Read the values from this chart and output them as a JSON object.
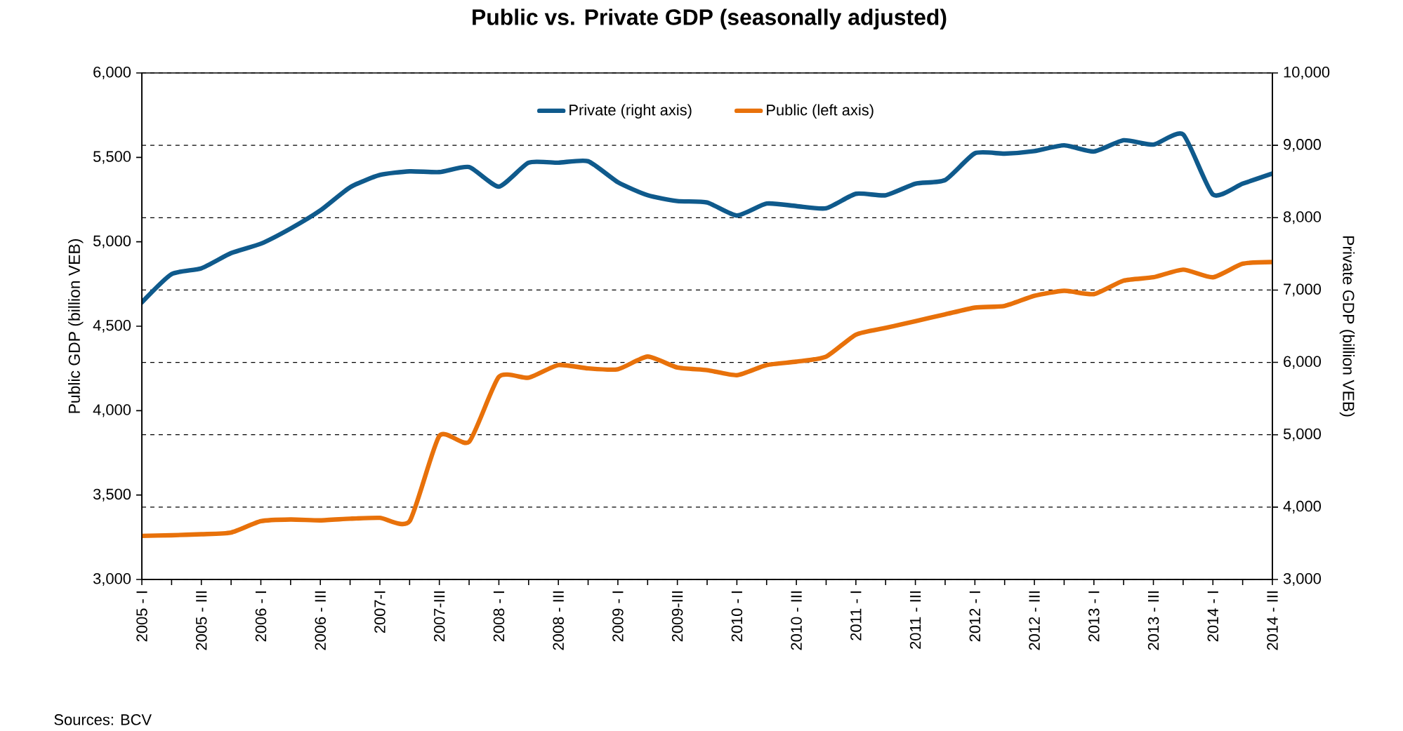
{
  "chart_data": {
    "type": "line",
    "title": "Public vs. Private GDP (seasonally adjusted)",
    "ylabel": "Public GDP (billion VEB)",
    "y2label": "Private GDP (billion VEB)",
    "categories": [
      "2005 - I",
      null,
      "2005 - III",
      null,
      "2006 - I",
      null,
      "2006 - III",
      null,
      "2007-I",
      null,
      "2007-III",
      null,
      "2008 - I",
      null,
      "2008 - III",
      null,
      "2009 - I",
      null,
      "2009-III",
      null,
      "2010 - I",
      null,
      "2010 - III",
      null,
      "2011 - I",
      null,
      "2011 - III",
      null,
      "2012 - I",
      null,
      "2012 - III",
      null,
      "2013 - I",
      null,
      "2013 - III",
      null,
      "2014 - I",
      null,
      "2014 - III"
    ],
    "series": [
      {
        "name": "Private (right axis)",
        "color": "#0f5a8c",
        "axis": "y2",
        "values": [
          6830,
          7220,
          7300,
          7510,
          7640,
          7850,
          8100,
          8420,
          8590,
          8640,
          8630,
          8700,
          8430,
          8760,
          8760,
          8780,
          8490,
          8310,
          8230,
          8210,
          8030,
          8195,
          8160,
          8130,
          8330,
          8310,
          8470,
          8520,
          8890,
          8885,
          8920,
          9000,
          8915,
          9070,
          9010,
          9150,
          8320,
          8470,
          8610
        ]
      },
      {
        "name": "Public (left axis)",
        "color": "#e8710a",
        "values": [
          3258,
          3262,
          3268,
          3278,
          3345,
          3355,
          3350,
          3360,
          3365,
          3345,
          3850,
          3815,
          4200,
          4195,
          4270,
          4250,
          4245,
          4320,
          4255,
          4240,
          4210,
          4270,
          4290,
          4320,
          4450,
          4490,
          4530,
          4570,
          4610,
          4620,
          4680,
          4710,
          4690,
          4770,
          4790,
          4835,
          4790,
          4870,
          4880
        ]
      }
    ],
    "ylim": [
      3000,
      6000
    ],
    "yticks": [
      {
        "value": 3000,
        "label": "3,000"
      },
      {
        "value": 3500,
        "label": "3,500"
      },
      {
        "value": 4000,
        "label": "4,000"
      },
      {
        "value": 4500,
        "label": "4,500"
      },
      {
        "value": 5000,
        "label": "5,000"
      },
      {
        "value": 5500,
        "label": "5,500"
      },
      {
        "value": 6000,
        "label": "6,000"
      }
    ],
    "y2lim": [
      3000,
      10000
    ],
    "y2ticks": [
      {
        "value": 3000,
        "label": "3,000"
      },
      {
        "value": 4000,
        "label": "4,000"
      },
      {
        "value": 5000,
        "label": "5,000"
      },
      {
        "value": 6000,
        "label": "6,000"
      },
      {
        "value": 7000,
        "label": "7,000"
      },
      {
        "value": 8000,
        "label": "8,000"
      },
      {
        "value": 9000,
        "label": "9,000"
      },
      {
        "value": 10000,
        "label": "10,000"
      }
    ],
    "grid": "y2",
    "legend": "top",
    "marker": "none",
    "line_style": "solid",
    "annotations": [
      "Sources: BCV"
    ]
  }
}
